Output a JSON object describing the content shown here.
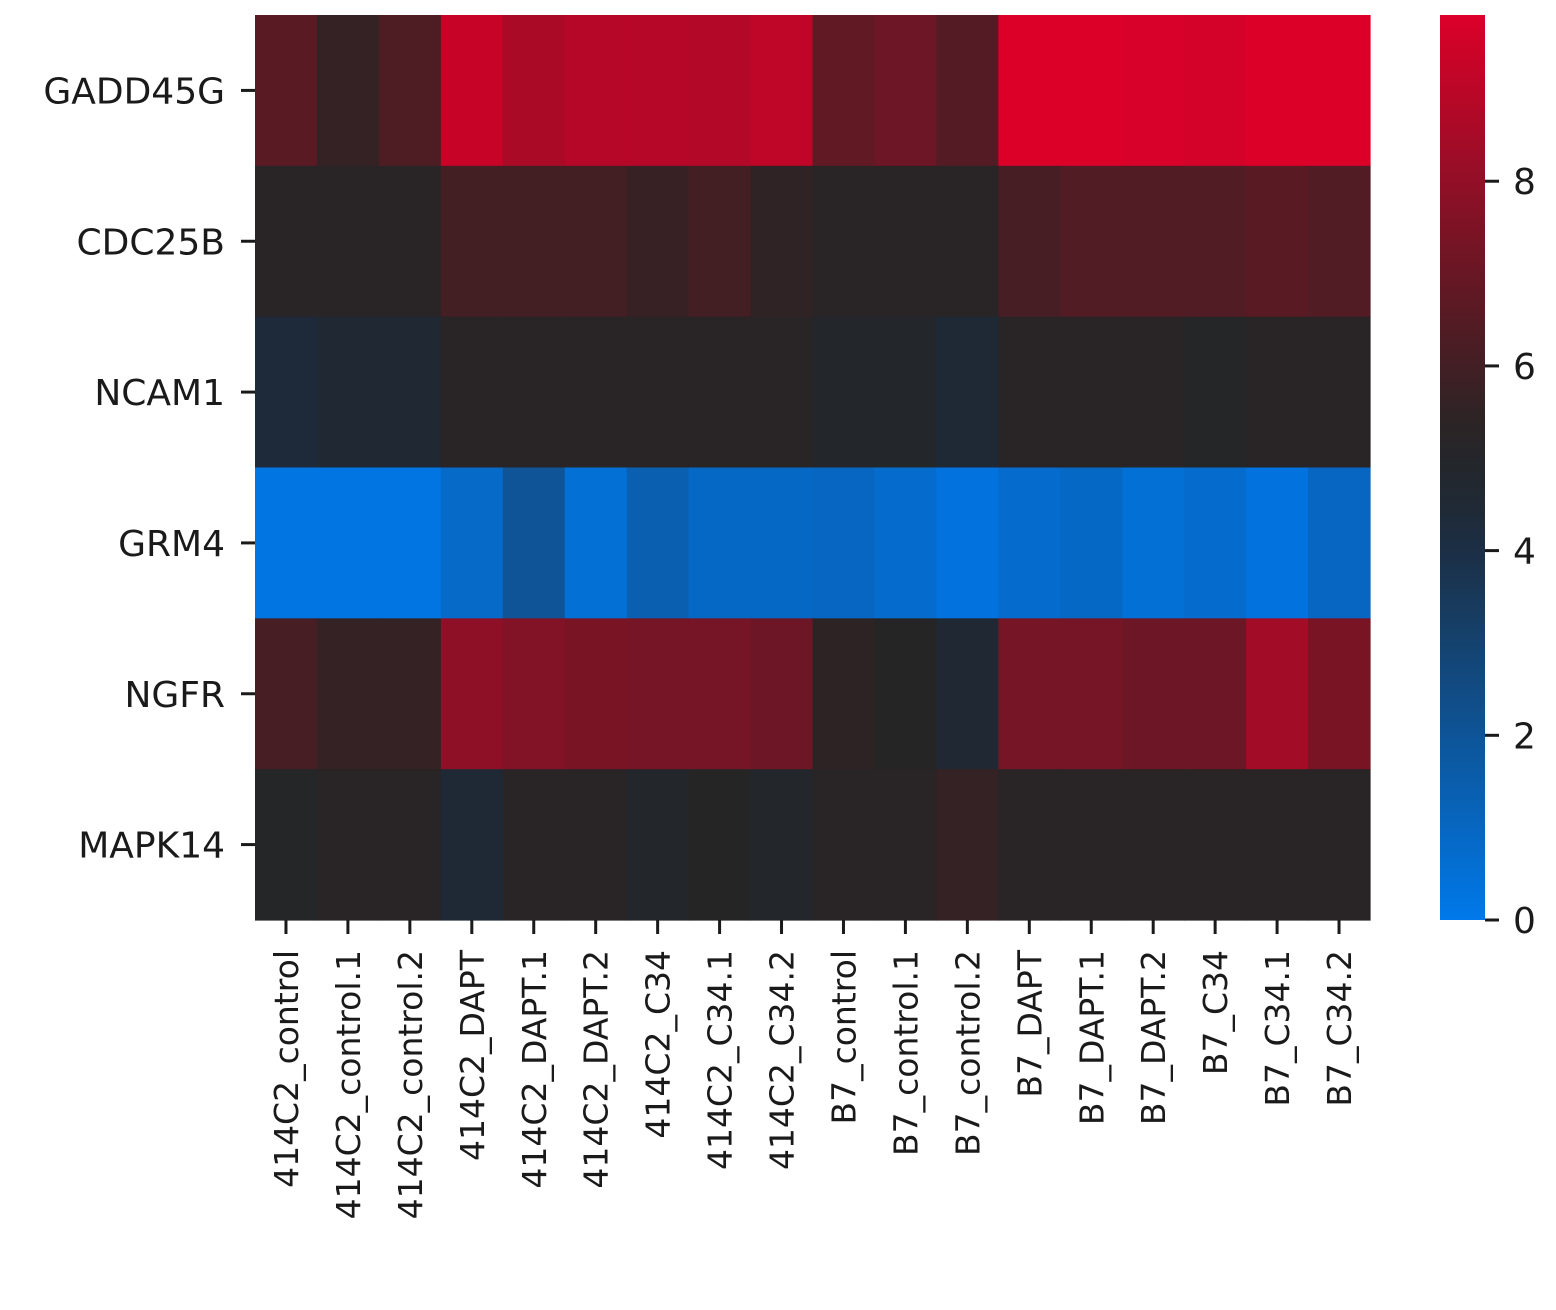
{
  "chart_data": {
    "type": "heatmap",
    "title": "",
    "xlabel": "",
    "ylabel": "",
    "rows": [
      "GADD45G",
      "CDC25B",
      "NCAM1",
      "GRM4",
      "NGFR",
      "MAPK14"
    ],
    "columns": [
      "414C2_control",
      "414C2_control.1",
      "414C2_control.2",
      "414C2_DAPT",
      "414C2_DAPT.1",
      "414C2_DAPT.2",
      "414C2_C34",
      "414C2_C34.1",
      "414C2_C34.2",
      "B7_control",
      "B7_control.1",
      "B7_control.2",
      "B7_DAPT",
      "B7_DAPT.1",
      "B7_DAPT.2",
      "B7_C34",
      "B7_C34.1",
      "B7_C34.2"
    ],
    "values": [
      [
        6.6,
        5.6,
        6.3,
        9.3,
        8.6,
        8.9,
        8.9,
        8.8,
        9.1,
        6.8,
        7.1,
        6.5,
        9.8,
        9.8,
        9.7,
        9.6,
        9.8,
        9.8
      ],
      [
        5.3,
        5.3,
        5.3,
        6.0,
        6.0,
        6.0,
        5.7,
        6.0,
        5.5,
        5.3,
        5.3,
        5.3,
        6.1,
        6.4,
        6.4,
        6.4,
        6.6,
        6.4
      ],
      [
        4.3,
        4.6,
        4.6,
        5.3,
        5.3,
        5.3,
        5.3,
        5.3,
        5.3,
        4.9,
        4.9,
        4.5,
        5.3,
        5.3,
        5.3,
        5.1,
        5.3,
        5.3
      ],
      [
        0.2,
        0.2,
        0.2,
        0.8,
        2.0,
        0.5,
        1.4,
        0.9,
        0.9,
        1.0,
        0.7,
        0.3,
        0.7,
        0.9,
        0.5,
        0.7,
        0.3,
        1.0
      ],
      [
        6.1,
        5.6,
        5.6,
        7.9,
        7.6,
        7.4,
        7.3,
        7.3,
        7.1,
        5.4,
        5.2,
        4.6,
        7.3,
        7.3,
        7.1,
        7.1,
        8.4,
        7.4
      ],
      [
        5.1,
        5.3,
        5.3,
        4.5,
        5.3,
        5.3,
        5.0,
        5.2,
        4.9,
        5.3,
        5.3,
        5.6,
        5.3,
        5.3,
        5.3,
        5.3,
        5.3,
        5.3
      ]
    ],
    "colorbar": {
      "range": [
        0,
        9.8
      ],
      "ticks": [
        0,
        2,
        4,
        6,
        8
      ],
      "colors": {
        "low": "#0079ea",
        "mid_low": "#1d2b3c",
        "mid": "#252525",
        "mid_high": "#5b1a24",
        "high": "#dc0029"
      }
    }
  }
}
